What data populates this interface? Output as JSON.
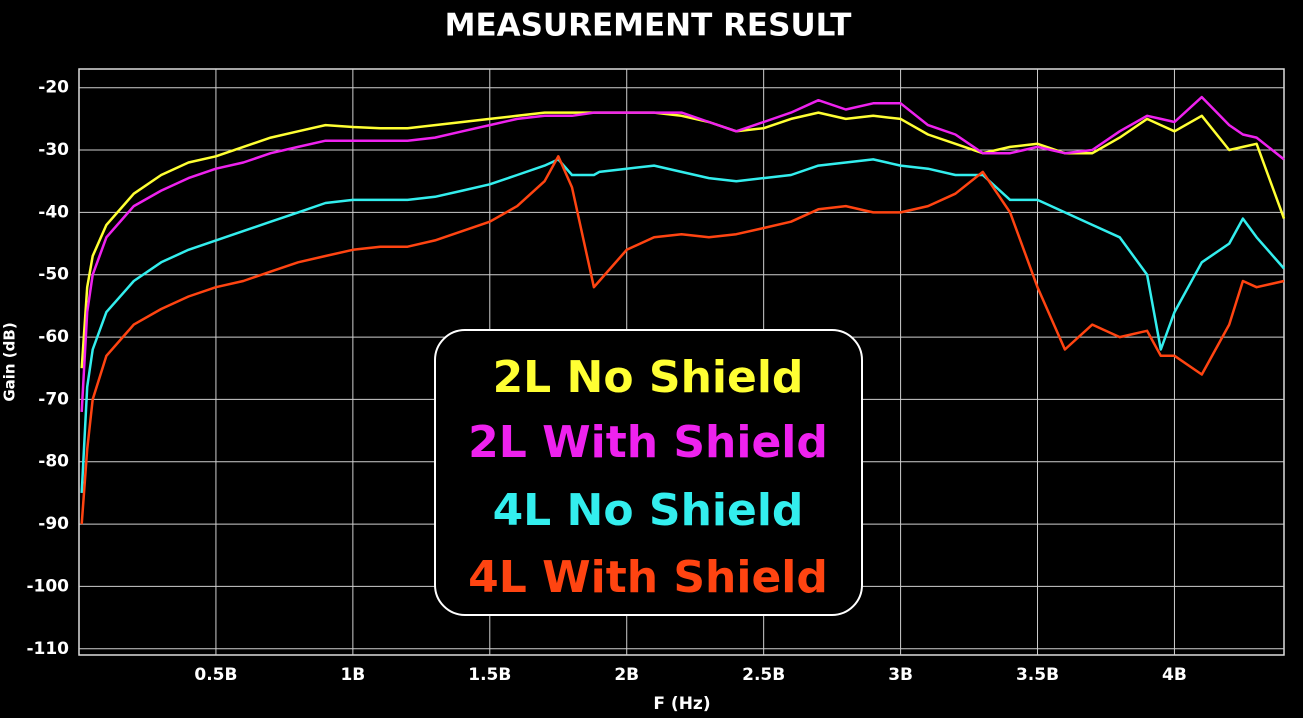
{
  "chart_data": {
    "type": "line",
    "title": "MEASUREMENT RESULT",
    "x_label": "F (Hz)",
    "y_label": "Gain (dB)",
    "x": [
      10000000,
      30000000,
      50000000,
      100000000,
      200000000,
      300000000,
      400000000,
      500000000,
      600000000,
      700000000,
      800000000,
      900000000,
      1000000000,
      1100000000,
      1200000000,
      1300000000,
      1400000000,
      1500000000,
      1600000000,
      1700000000,
      1750000000,
      1800000000,
      1880000000,
      1900000000,
      2000000000,
      2100000000,
      2200000000,
      2300000000,
      2400000000,
      2500000000,
      2600000000,
      2700000000,
      2800000000,
      2900000000,
      3000000000,
      3100000000,
      3200000000,
      3300000000,
      3400000000,
      3500000000,
      3600000000,
      3700000000,
      3800000000,
      3900000000,
      3950000000,
      4000000000,
      4100000000,
      4200000000,
      4250000000,
      4300000000,
      4400000000
    ],
    "series": [
      {
        "name": "2L No Shield",
        "color": "#ffff33",
        "values": [
          -65,
          -52,
          -47,
          -42,
          -37,
          -34,
          -32,
          -31,
          -29.5,
          -28,
          -27,
          -26,
          -26.3,
          -26.5,
          -26.5,
          -26,
          -25.5,
          -25,
          -24.5,
          -24,
          -24,
          -24,
          -24,
          -24,
          -24,
          -24,
          -24.5,
          -25.5,
          -27,
          -26.5,
          -25,
          -24,
          -25,
          -24.5,
          -25,
          -27.5,
          -29,
          -30.5,
          -29.5,
          -29,
          -30.5,
          -30.5,
          -28,
          -25,
          -26,
          -27,
          -24.5,
          -30,
          -29.5,
          -29,
          -41
        ]
      },
      {
        "name": "2L With Shield",
        "color": "#ee22ee",
        "values": [
          -72,
          -56,
          -50,
          -44,
          -39,
          -36.5,
          -34.5,
          -33,
          -32,
          -30.5,
          -29.5,
          -28.5,
          -28.5,
          -28.5,
          -28.5,
          -28,
          -27,
          -26,
          -25,
          -24.5,
          -24.5,
          -24.5,
          -24,
          -24,
          -24,
          -24,
          -24,
          -25.5,
          -27,
          -25.5,
          -24,
          -22,
          -23.5,
          -22.5,
          -22.5,
          -26,
          -27.5,
          -30.5,
          -30.5,
          -29.5,
          -30.5,
          -30,
          -27,
          -24.5,
          -25,
          -25.5,
          -21.5,
          -26,
          -27.5,
          -28,
          -31.5
        ]
      },
      {
        "name": "4L No Shield",
        "color": "#33eeee",
        "values": [
          -85,
          -68,
          -62,
          -56,
          -51,
          -48,
          -46,
          -44.5,
          -43,
          -41.5,
          -40,
          -38.5,
          -38,
          -38,
          -38,
          -37.5,
          -36.5,
          -35.5,
          -34,
          -32.5,
          -31.5,
          -34,
          -34,
          -33.5,
          -33,
          -32.5,
          -33.5,
          -34.5,
          -35,
          -34.5,
          -34,
          -32.5,
          -32,
          -31.5,
          -32.5,
          -33,
          -34,
          -34,
          -38,
          -38,
          -40,
          -42,
          -44,
          -50,
          -62,
          -56,
          -48,
          -45,
          -41,
          -44,
          -49
        ]
      },
      {
        "name": "4L With Shield",
        "color": "#ff4411",
        "values": [
          -90,
          -78,
          -70,
          -63,
          -58,
          -55.5,
          -53.5,
          -52,
          -51,
          -49.5,
          -48,
          -47,
          -46,
          -45.5,
          -45.5,
          -44.5,
          -43,
          -41.5,
          -39,
          -35,
          -31,
          -36,
          -52,
          -51,
          -46,
          -44,
          -43.5,
          -44,
          -43.5,
          -42.5,
          -41.5,
          -39.5,
          -39,
          -40,
          -40,
          -39,
          -37,
          -33.5,
          -40,
          -52,
          -62,
          -58,
          -60,
          -59,
          -63,
          -63,
          -66,
          -58,
          -51,
          -52,
          -51
        ]
      }
    ],
    "xlim": [
      0,
      4400000000
    ],
    "xticks": [
      {
        "value": 500000000,
        "label": "0.5B"
      },
      {
        "value": 1000000000,
        "label": "1B"
      },
      {
        "value": 1500000000,
        "label": "1.5B"
      },
      {
        "value": 2000000000,
        "label": "2B"
      },
      {
        "value": 2500000000,
        "label": "2.5B"
      },
      {
        "value": 3000000000,
        "label": "3B"
      },
      {
        "value": 3500000000,
        "label": "3.5B"
      },
      {
        "value": 4000000000,
        "label": "4B"
      }
    ],
    "ylim": [
      -111,
      -17
    ],
    "yticks": [
      -20,
      -30,
      -40,
      -50,
      -60,
      -70,
      -80,
      -90,
      -100,
      -110
    ],
    "grid": true
  }
}
